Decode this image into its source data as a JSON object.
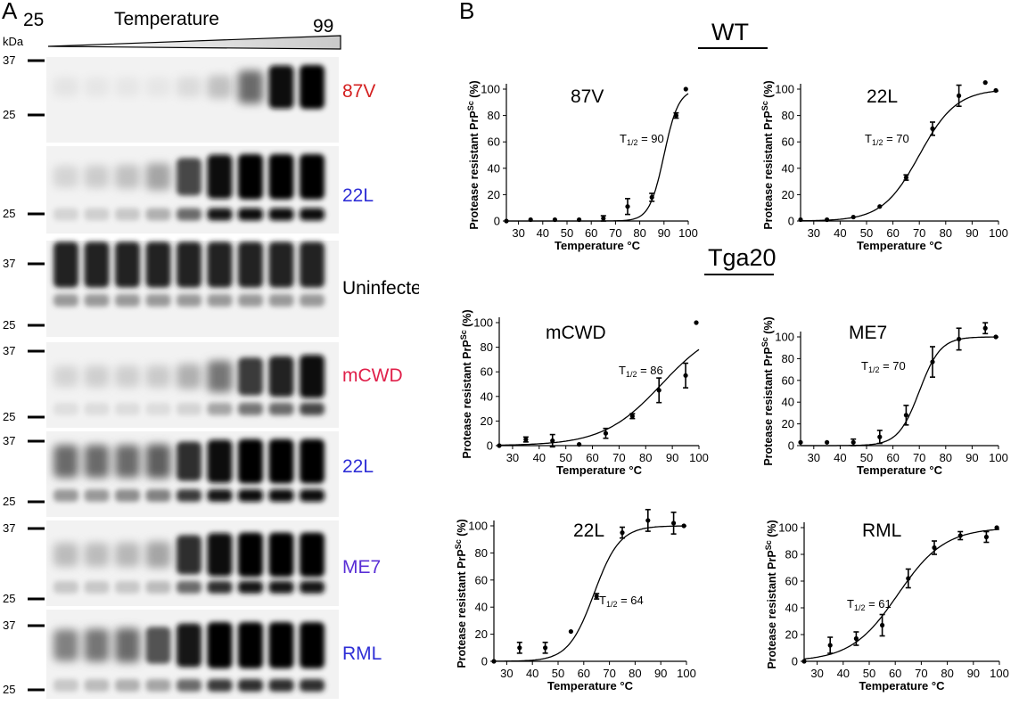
{
  "figure": {
    "panel_a_letter": "A",
    "panel_b_letter": "B",
    "temp_label": "Temperature",
    "temp_min": "25",
    "temp_max": "99",
    "kda_label": "kDa",
    "group_wt": "WT",
    "group_tga20": "Tga20"
  },
  "colors": {
    "red": "#d42020",
    "blue": "#2f2fd6",
    "pink": "#e0204a",
    "black": "#000000"
  },
  "blots": [
    {
      "label": "87V",
      "color": "#d42020",
      "markers": [
        "37",
        "25"
      ]
    },
    {
      "label": "22L",
      "color": "#2f2fd6",
      "markers": [
        "25"
      ]
    },
    {
      "label": "Uninfected",
      "color": "#000000",
      "markers": [
        "37",
        "25"
      ]
    },
    {
      "label": "mCWD",
      "color": "#e0204a",
      "markers": [
        "37",
        "25"
      ]
    },
    {
      "label": "22L",
      "color": "#2f2fd6",
      "markers": [
        "37",
        "25"
      ]
    },
    {
      "label": "ME7",
      "color": "#5a2fd6",
      "markers": [
        "37",
        "25"
      ]
    },
    {
      "label": "RML",
      "color": "#2f2fd6",
      "markers": [
        "37",
        "25"
      ]
    }
  ],
  "chart_data": [
    {
      "type": "scatter",
      "title": "87V",
      "annotation": "T1/2 = 90",
      "t_half": 90,
      "slope": 3,
      "xlabel": "Temperature °C",
      "ylabel": "Protease resistant PrPSc (%)",
      "xlim": [
        25,
        100
      ],
      "ylim": [
        0,
        100
      ],
      "xticks": [
        30,
        40,
        50,
        60,
        70,
        80,
        90,
        100
      ],
      "yticks": [
        0,
        20,
        40,
        60,
        80,
        100
      ],
      "points": [
        {
          "x": 25,
          "y": 0,
          "err": 0
        },
        {
          "x": 35,
          "y": 1,
          "err": 0
        },
        {
          "x": 45,
          "y": 1,
          "err": 0
        },
        {
          "x": 55,
          "y": 1,
          "err": 0
        },
        {
          "x": 65,
          "y": 2,
          "err": 2
        },
        {
          "x": 75,
          "y": 11,
          "err": 6
        },
        {
          "x": 85,
          "y": 18,
          "err": 3
        },
        {
          "x": 95,
          "y": 80,
          "err": 2
        },
        {
          "x": 99,
          "y": 100,
          "err": 0
        }
      ]
    },
    {
      "type": "scatter",
      "title": "22L",
      "annotation": "T1/2 = 70",
      "t_half": 70,
      "slope": 7,
      "xlabel": "Temperature °C",
      "ylabel": "Protease resistant PrPSc (%)",
      "xlim": [
        25,
        100
      ],
      "ylim": [
        0,
        100
      ],
      "xticks": [
        30,
        40,
        50,
        60,
        70,
        80,
        90,
        100
      ],
      "yticks": [
        0,
        20,
        40,
        60,
        80,
        100
      ],
      "points": [
        {
          "x": 25,
          "y": 1,
          "err": 0
        },
        {
          "x": 35,
          "y": 1,
          "err": 0
        },
        {
          "x": 45,
          "y": 3,
          "err": 0
        },
        {
          "x": 55,
          "y": 11,
          "err": 0
        },
        {
          "x": 65,
          "y": 33,
          "err": 2
        },
        {
          "x": 75,
          "y": 70,
          "err": 5
        },
        {
          "x": 85,
          "y": 95,
          "err": 8
        },
        {
          "x": 95,
          "y": 105,
          "err": 0
        },
        {
          "x": 99,
          "y": 99,
          "err": 0
        }
      ]
    },
    {
      "type": "scatter",
      "title": "mCWD",
      "annotation": "T1/2 = 86",
      "t_half": 86,
      "slope": 11,
      "xlabel": "Temperature °C",
      "ylabel": "Protease resistant PrPSc (%)",
      "xlim": [
        25,
        100
      ],
      "ylim": [
        0,
        100
      ],
      "xticks": [
        30,
        40,
        50,
        60,
        70,
        80,
        90,
        100
      ],
      "yticks": [
        0,
        20,
        40,
        60,
        80,
        100
      ],
      "points": [
        {
          "x": 25,
          "y": 0,
          "err": 0
        },
        {
          "x": 35,
          "y": 5,
          "err": 2
        },
        {
          "x": 45,
          "y": 4,
          "err": 5
        },
        {
          "x": 55,
          "y": 1,
          "err": 0
        },
        {
          "x": 65,
          "y": 10,
          "err": 4
        },
        {
          "x": 75,
          "y": 24,
          "err": 2
        },
        {
          "x": 85,
          "y": 45,
          "err": 10
        },
        {
          "x": 95,
          "y": 57,
          "err": 10
        },
        {
          "x": 99,
          "y": 100,
          "err": 0
        }
      ]
    },
    {
      "type": "scatter",
      "title": "ME7",
      "annotation": "T1/2 = 70",
      "t_half": 70,
      "slope": 4,
      "xlabel": "Temperature °C",
      "ylabel": "Protease resistant PrPSc (%)",
      "xlim": [
        25,
        100
      ],
      "ylim": [
        0,
        100
      ],
      "xticks": [
        30,
        40,
        50,
        60,
        70,
        80,
        90,
        100
      ],
      "yticks": [
        0,
        20,
        40,
        60,
        80,
        100
      ],
      "points": [
        {
          "x": 25,
          "y": 3,
          "err": 0
        },
        {
          "x": 35,
          "y": 3,
          "err": 0
        },
        {
          "x": 45,
          "y": 3,
          "err": 3
        },
        {
          "x": 55,
          "y": 8,
          "err": 6
        },
        {
          "x": 65,
          "y": 28,
          "err": 9
        },
        {
          "x": 75,
          "y": 77,
          "err": 14
        },
        {
          "x": 85,
          "y": 98,
          "err": 10
        },
        {
          "x": 95,
          "y": 108,
          "err": 5
        },
        {
          "x": 99,
          "y": 100,
          "err": 0
        }
      ]
    },
    {
      "type": "scatter",
      "title": "22L",
      "annotation": "T1/2 = 64",
      "t_half": 64,
      "slope": 5,
      "xlabel": "Temperature °C",
      "ylabel": "Protease resistant PrPSc (%)",
      "xlim": [
        25,
        100
      ],
      "ylim": [
        0,
        100
      ],
      "xticks": [
        30,
        40,
        50,
        60,
        70,
        80,
        90,
        100
      ],
      "yticks": [
        0,
        20,
        40,
        60,
        80,
        100
      ],
      "points": [
        {
          "x": 25,
          "y": 0,
          "err": 0
        },
        {
          "x": 35,
          "y": 10,
          "err": 4
        },
        {
          "x": 45,
          "y": 10,
          "err": 4
        },
        {
          "x": 55,
          "y": 22,
          "err": 0
        },
        {
          "x": 65,
          "y": 48,
          "err": 2
        },
        {
          "x": 75,
          "y": 95,
          "err": 4
        },
        {
          "x": 85,
          "y": 104,
          "err": 8
        },
        {
          "x": 95,
          "y": 102,
          "err": 8
        },
        {
          "x": 99,
          "y": 100,
          "err": 0
        }
      ]
    },
    {
      "type": "scatter",
      "title": "RML",
      "annotation": "T1/2 = 61",
      "t_half": 61,
      "slope": 9,
      "xlabel": "Temperature °C",
      "ylabel": "Protease resistant PrPSc (%)",
      "xlim": [
        25,
        100
      ],
      "ylim": [
        0,
        100
      ],
      "xticks": [
        30,
        40,
        50,
        60,
        70,
        80,
        90,
        100
      ],
      "yticks": [
        0,
        20,
        40,
        60,
        80,
        100
      ],
      "points": [
        {
          "x": 25,
          "y": 0,
          "err": 0
        },
        {
          "x": 35,
          "y": 12,
          "err": 6
        },
        {
          "x": 45,
          "y": 17,
          "err": 5
        },
        {
          "x": 55,
          "y": 27,
          "err": 8
        },
        {
          "x": 65,
          "y": 62,
          "err": 7
        },
        {
          "x": 75,
          "y": 85,
          "err": 5
        },
        {
          "x": 85,
          "y": 94,
          "err": 3
        },
        {
          "x": 95,
          "y": 93,
          "err": 4
        },
        {
          "x": 99,
          "y": 100,
          "err": 0
        }
      ]
    }
  ]
}
